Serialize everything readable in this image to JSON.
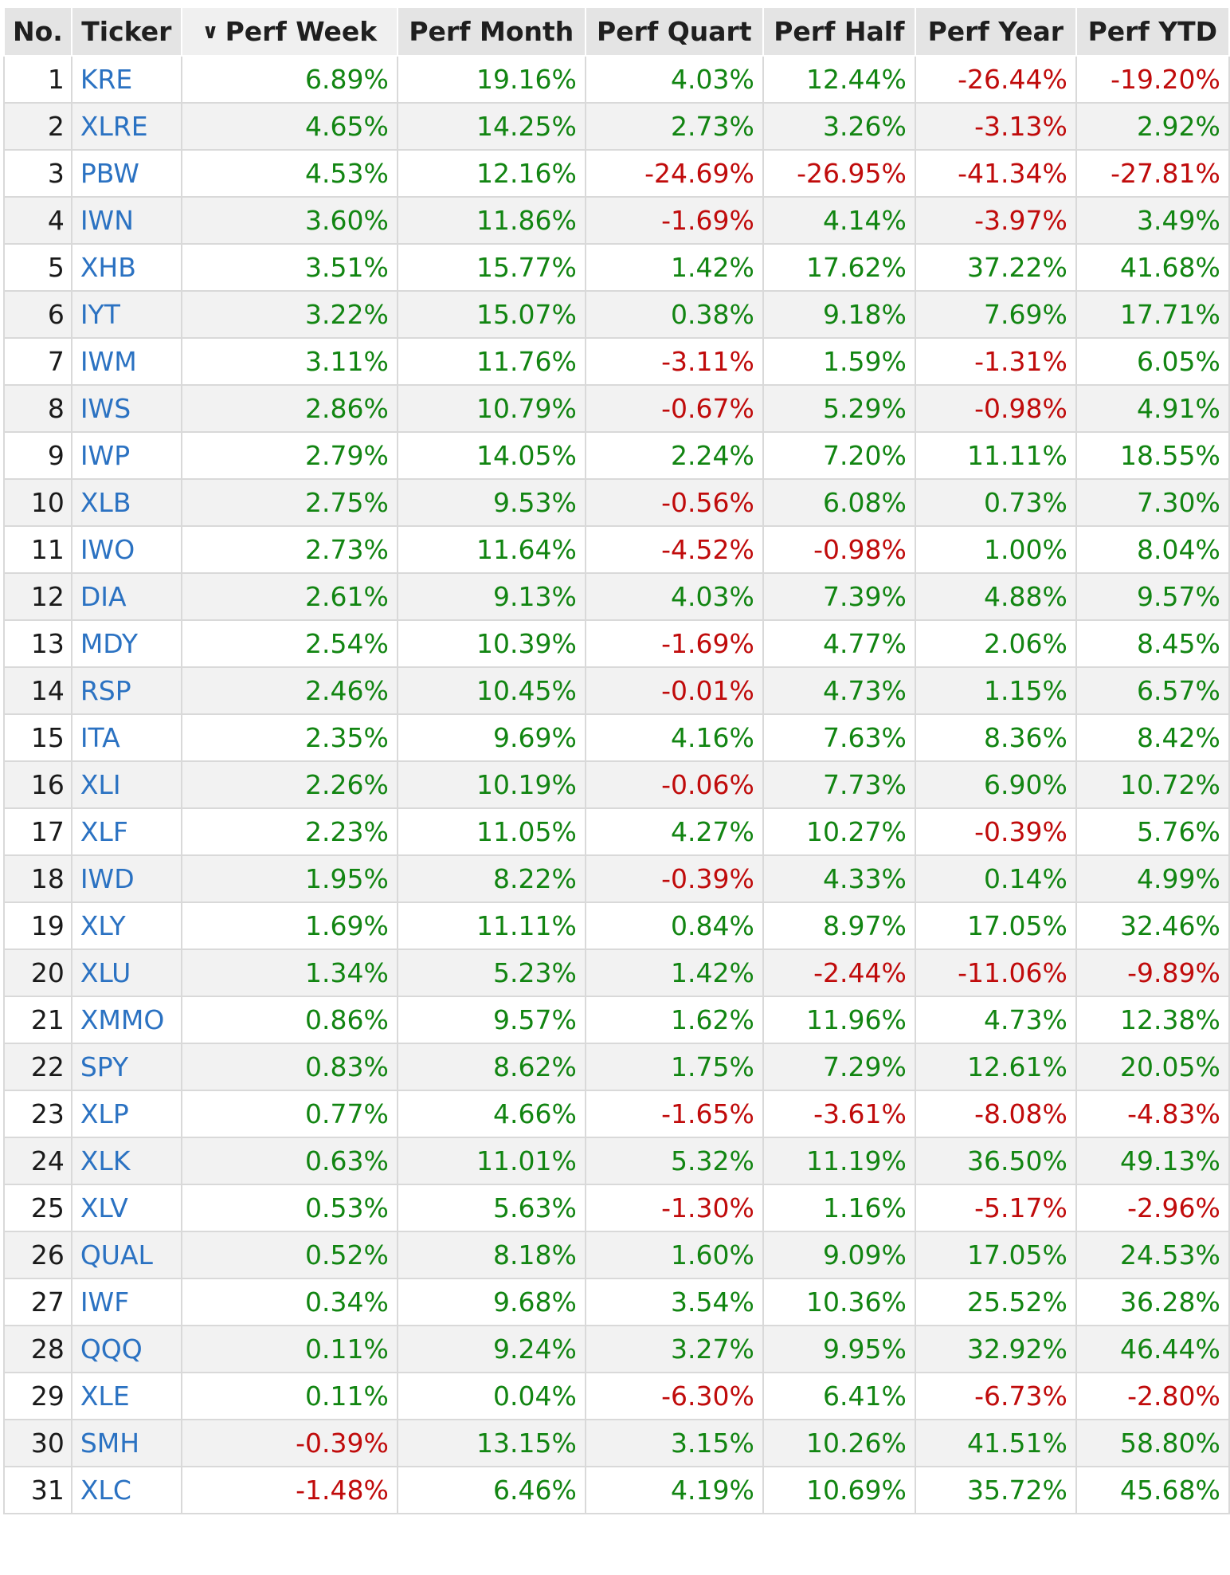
{
  "header": {
    "columns": [
      "No.",
      "Ticker",
      "Perf Week",
      "Perf Month",
      "Perf Quart",
      "Perf Half",
      "Perf Year",
      "Perf YTD"
    ],
    "sort_icon": "chevron-down-icon"
  },
  "colors": {
    "positive": "#128512",
    "negative": "#c00b0b",
    "ticker_link": "#2b72c2"
  },
  "rows": [
    {
      "no": "1",
      "ticker": "KRE",
      "perf_week": "6.89%",
      "perf_month": "19.16%",
      "perf_quart": "4.03%",
      "perf_half": "12.44%",
      "perf_year": "-26.44%",
      "perf_ytd": "-19.20%"
    },
    {
      "no": "2",
      "ticker": "XLRE",
      "perf_week": "4.65%",
      "perf_month": "14.25%",
      "perf_quart": "2.73%",
      "perf_half": "3.26%",
      "perf_year": "-3.13%",
      "perf_ytd": "2.92%"
    },
    {
      "no": "3",
      "ticker": "PBW",
      "perf_week": "4.53%",
      "perf_month": "12.16%",
      "perf_quart": "-24.69%",
      "perf_half": "-26.95%",
      "perf_year": "-41.34%",
      "perf_ytd": "-27.81%"
    },
    {
      "no": "4",
      "ticker": "IWN",
      "perf_week": "3.60%",
      "perf_month": "11.86%",
      "perf_quart": "-1.69%",
      "perf_half": "4.14%",
      "perf_year": "-3.97%",
      "perf_ytd": "3.49%"
    },
    {
      "no": "5",
      "ticker": "XHB",
      "perf_week": "3.51%",
      "perf_month": "15.77%",
      "perf_quart": "1.42%",
      "perf_half": "17.62%",
      "perf_year": "37.22%",
      "perf_ytd": "41.68%"
    },
    {
      "no": "6",
      "ticker": "IYT",
      "perf_week": "3.22%",
      "perf_month": "15.07%",
      "perf_quart": "0.38%",
      "perf_half": "9.18%",
      "perf_year": "7.69%",
      "perf_ytd": "17.71%"
    },
    {
      "no": "7",
      "ticker": "IWM",
      "perf_week": "3.11%",
      "perf_month": "11.76%",
      "perf_quart": "-3.11%",
      "perf_half": "1.59%",
      "perf_year": "-1.31%",
      "perf_ytd": "6.05%"
    },
    {
      "no": "8",
      "ticker": "IWS",
      "perf_week": "2.86%",
      "perf_month": "10.79%",
      "perf_quart": "-0.67%",
      "perf_half": "5.29%",
      "perf_year": "-0.98%",
      "perf_ytd": "4.91%"
    },
    {
      "no": "9",
      "ticker": "IWP",
      "perf_week": "2.79%",
      "perf_month": "14.05%",
      "perf_quart": "2.24%",
      "perf_half": "7.20%",
      "perf_year": "11.11%",
      "perf_ytd": "18.55%"
    },
    {
      "no": "10",
      "ticker": "XLB",
      "perf_week": "2.75%",
      "perf_month": "9.53%",
      "perf_quart": "-0.56%",
      "perf_half": "6.08%",
      "perf_year": "0.73%",
      "perf_ytd": "7.30%"
    },
    {
      "no": "11",
      "ticker": "IWO",
      "perf_week": "2.73%",
      "perf_month": "11.64%",
      "perf_quart": "-4.52%",
      "perf_half": "-0.98%",
      "perf_year": "1.00%",
      "perf_ytd": "8.04%"
    },
    {
      "no": "12",
      "ticker": "DIA",
      "perf_week": "2.61%",
      "perf_month": "9.13%",
      "perf_quart": "4.03%",
      "perf_half": "7.39%",
      "perf_year": "4.88%",
      "perf_ytd": "9.57%"
    },
    {
      "no": "13",
      "ticker": "MDY",
      "perf_week": "2.54%",
      "perf_month": "10.39%",
      "perf_quart": "-1.69%",
      "perf_half": "4.77%",
      "perf_year": "2.06%",
      "perf_ytd": "8.45%"
    },
    {
      "no": "14",
      "ticker": "RSP",
      "perf_week": "2.46%",
      "perf_month": "10.45%",
      "perf_quart": "-0.01%",
      "perf_half": "4.73%",
      "perf_year": "1.15%",
      "perf_ytd": "6.57%"
    },
    {
      "no": "15",
      "ticker": "ITA",
      "perf_week": "2.35%",
      "perf_month": "9.69%",
      "perf_quart": "4.16%",
      "perf_half": "7.63%",
      "perf_year": "8.36%",
      "perf_ytd": "8.42%"
    },
    {
      "no": "16",
      "ticker": "XLI",
      "perf_week": "2.26%",
      "perf_month": "10.19%",
      "perf_quart": "-0.06%",
      "perf_half": "7.73%",
      "perf_year": "6.90%",
      "perf_ytd": "10.72%"
    },
    {
      "no": "17",
      "ticker": "XLF",
      "perf_week": "2.23%",
      "perf_month": "11.05%",
      "perf_quart": "4.27%",
      "perf_half": "10.27%",
      "perf_year": "-0.39%",
      "perf_ytd": "5.76%"
    },
    {
      "no": "18",
      "ticker": "IWD",
      "perf_week": "1.95%",
      "perf_month": "8.22%",
      "perf_quart": "-0.39%",
      "perf_half": "4.33%",
      "perf_year": "0.14%",
      "perf_ytd": "4.99%"
    },
    {
      "no": "19",
      "ticker": "XLY",
      "perf_week": "1.69%",
      "perf_month": "11.11%",
      "perf_quart": "0.84%",
      "perf_half": "8.97%",
      "perf_year": "17.05%",
      "perf_ytd": "32.46%"
    },
    {
      "no": "20",
      "ticker": "XLU",
      "perf_week": "1.34%",
      "perf_month": "5.23%",
      "perf_quart": "1.42%",
      "perf_half": "-2.44%",
      "perf_year": "-11.06%",
      "perf_ytd": "-9.89%"
    },
    {
      "no": "21",
      "ticker": "XMMO",
      "perf_week": "0.86%",
      "perf_month": "9.57%",
      "perf_quart": "1.62%",
      "perf_half": "11.96%",
      "perf_year": "4.73%",
      "perf_ytd": "12.38%"
    },
    {
      "no": "22",
      "ticker": "SPY",
      "perf_week": "0.83%",
      "perf_month": "8.62%",
      "perf_quart": "1.75%",
      "perf_half": "7.29%",
      "perf_year": "12.61%",
      "perf_ytd": "20.05%"
    },
    {
      "no": "23",
      "ticker": "XLP",
      "perf_week": "0.77%",
      "perf_month": "4.66%",
      "perf_quart": "-1.65%",
      "perf_half": "-3.61%",
      "perf_year": "-8.08%",
      "perf_ytd": "-4.83%"
    },
    {
      "no": "24",
      "ticker": "XLK",
      "perf_week": "0.63%",
      "perf_month": "11.01%",
      "perf_quart": "5.32%",
      "perf_half": "11.19%",
      "perf_year": "36.50%",
      "perf_ytd": "49.13%"
    },
    {
      "no": "25",
      "ticker": "XLV",
      "perf_week": "0.53%",
      "perf_month": "5.63%",
      "perf_quart": "-1.30%",
      "perf_half": "1.16%",
      "perf_year": "-5.17%",
      "perf_ytd": "-2.96%"
    },
    {
      "no": "26",
      "ticker": "QUAL",
      "perf_week": "0.52%",
      "perf_month": "8.18%",
      "perf_quart": "1.60%",
      "perf_half": "9.09%",
      "perf_year": "17.05%",
      "perf_ytd": "24.53%"
    },
    {
      "no": "27",
      "ticker": "IWF",
      "perf_week": "0.34%",
      "perf_month": "9.68%",
      "perf_quart": "3.54%",
      "perf_half": "10.36%",
      "perf_year": "25.52%",
      "perf_ytd": "36.28%"
    },
    {
      "no": "28",
      "ticker": "QQQ",
      "perf_week": "0.11%",
      "perf_month": "9.24%",
      "perf_quart": "3.27%",
      "perf_half": "9.95%",
      "perf_year": "32.92%",
      "perf_ytd": "46.44%"
    },
    {
      "no": "29",
      "ticker": "XLE",
      "perf_week": "0.11%",
      "perf_month": "0.04%",
      "perf_quart": "-6.30%",
      "perf_half": "6.41%",
      "perf_year": "-6.73%",
      "perf_ytd": "-2.80%"
    },
    {
      "no": "30",
      "ticker": "SMH",
      "perf_week": "-0.39%",
      "perf_month": "13.15%",
      "perf_quart": "3.15%",
      "perf_half": "10.26%",
      "perf_year": "41.51%",
      "perf_ytd": "58.80%"
    },
    {
      "no": "31",
      "ticker": "XLC",
      "perf_week": "-1.48%",
      "perf_month": "6.46%",
      "perf_quart": "4.19%",
      "perf_half": "10.69%",
      "perf_year": "35.72%",
      "perf_ytd": "45.68%"
    }
  ]
}
